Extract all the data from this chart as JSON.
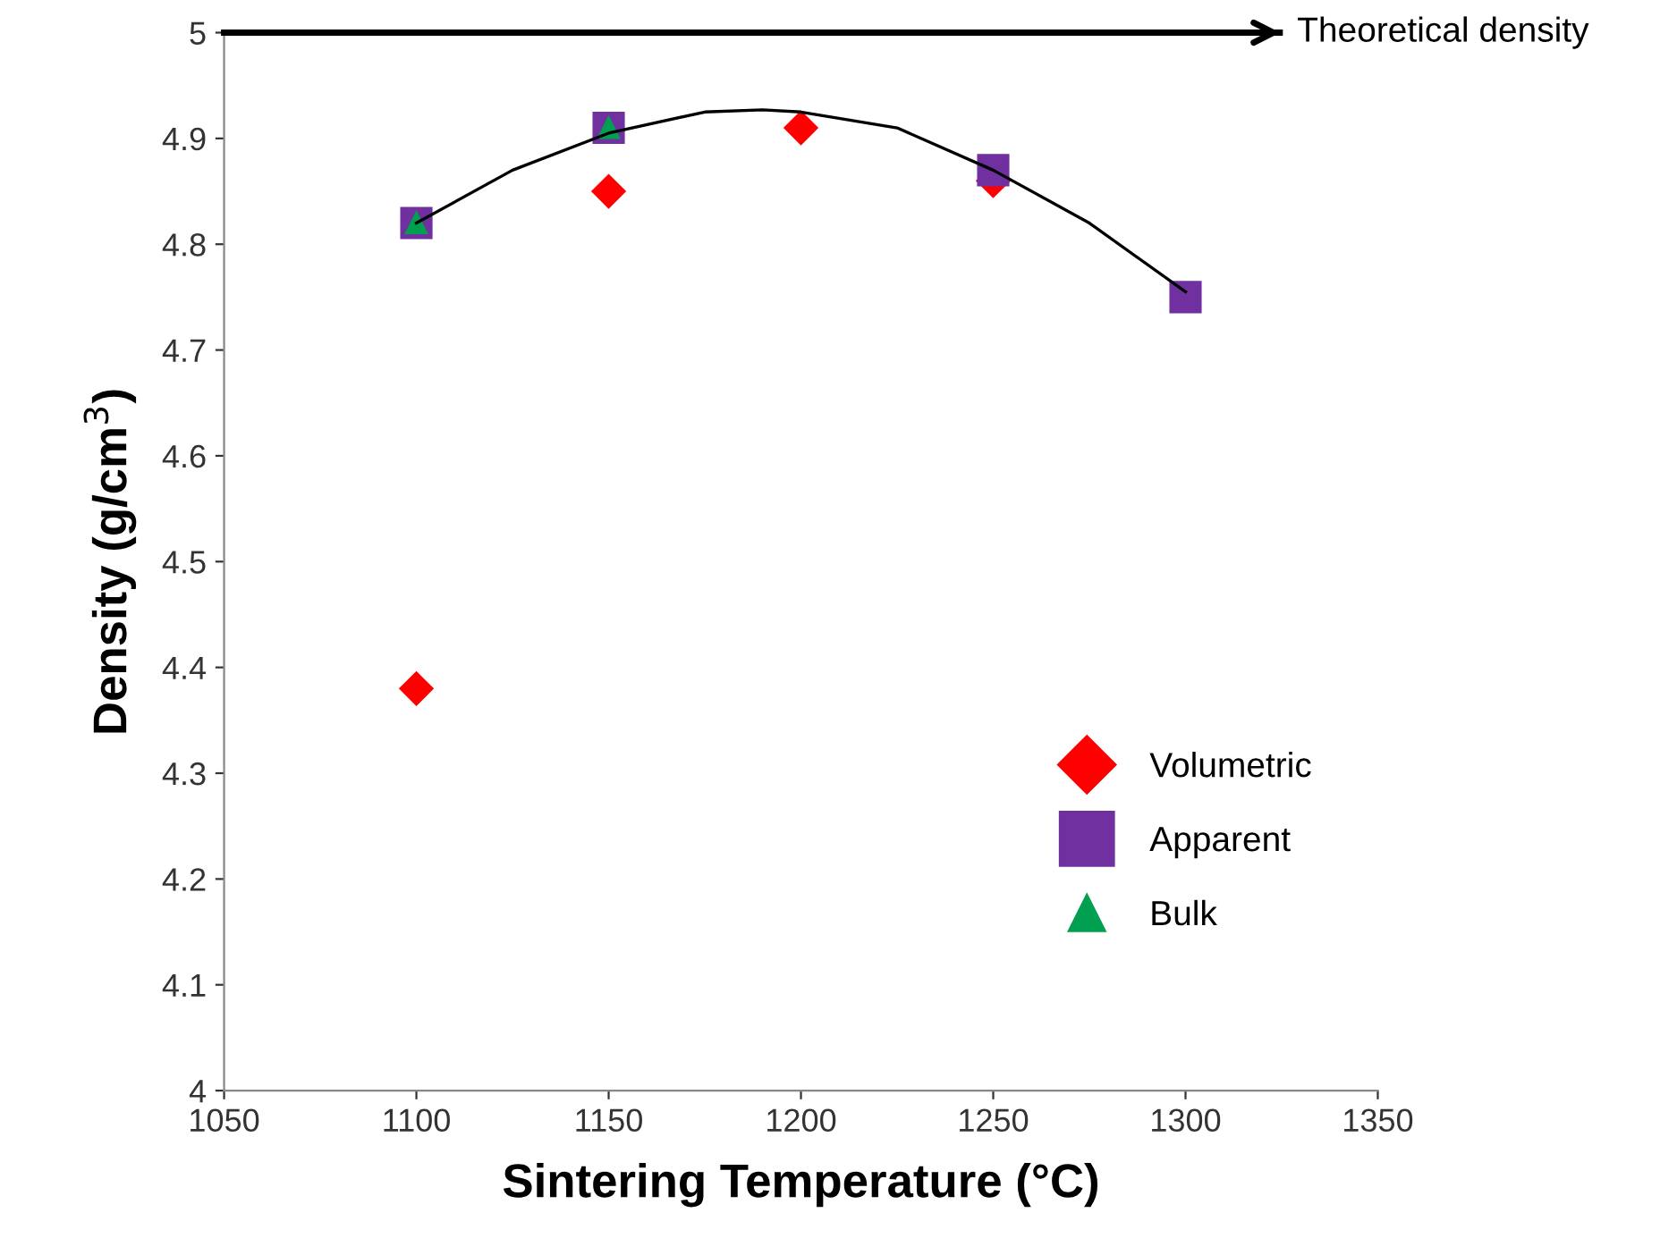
{
  "chart_data": {
    "type": "scatter",
    "xlabel": "Sintering Temperature (°C)",
    "ylabel": "Density (g/cm$^{3}$)",
    "xlim": [
      1050,
      1350
    ],
    "xticks": [
      1050,
      1100,
      1150,
      1200,
      1250,
      1300,
      1350
    ],
    "ylim": [
      4,
      5
    ],
    "yticks": [
      4,
      4.1,
      4.2,
      4.3,
      4.4,
      4.5,
      4.6,
      4.7,
      4.8,
      4.9,
      5
    ],
    "grid": false,
    "legend": "bottom right",
    "ref_lines": [
      {
        "axis": "y",
        "value": 5,
        "label": "Theoretical density",
        "color": "#000000"
      }
    ],
    "series": [
      {
        "name": "Volumetric",
        "color": "#ff0000",
        "marker": "diamond",
        "x": [
          1100,
          1150,
          1200,
          1250
        ],
        "values": [
          4.38,
          4.85,
          4.91,
          4.86
        ]
      },
      {
        "name": "Apparent",
        "color": "#7030a0",
        "marker": "square",
        "x": [
          1100,
          1150,
          1250,
          1300
        ],
        "values": [
          4.82,
          4.91,
          4.87,
          4.75
        ]
      },
      {
        "name": "Bulk",
        "color": "#00a050",
        "marker": "triangle",
        "x": [
          1100,
          1150
        ],
        "values": [
          4.82,
          4.91
        ]
      },
      {
        "type": "line",
        "color": "#000000",
        "marker": "none",
        "x": [
          1100,
          1125,
          1150,
          1175,
          1190,
          1200,
          1225,
          1250,
          1275,
          1300
        ],
        "values": [
          4.82,
          4.87,
          4.905,
          4.925,
          4.927,
          4.925,
          4.91,
          4.87,
          4.82,
          4.755
        ]
      }
    ]
  }
}
